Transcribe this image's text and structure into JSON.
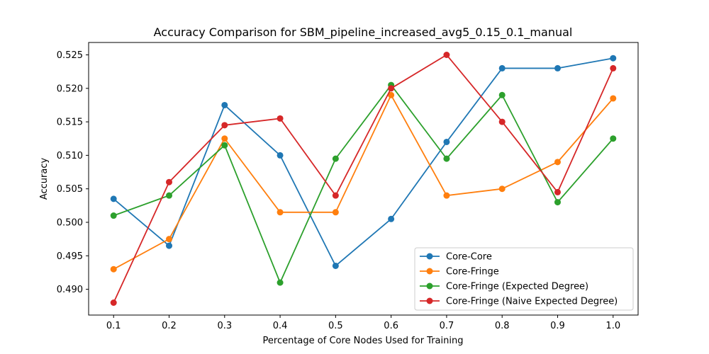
{
  "chart_data": {
    "type": "line",
    "title": "Accuracy Comparison for SBM_pipeline_increased_avg5_0.15_0.1_manual",
    "xlabel": "Percentage of Core Nodes Used for Training",
    "ylabel": "Accuracy",
    "x": [
      0.1,
      0.2,
      0.3,
      0.4,
      0.5,
      0.6,
      0.7,
      0.8,
      0.9,
      1.0
    ],
    "x_tick_labels": [
      "0.1",
      "0.2",
      "0.3",
      "0.4",
      "0.5",
      "0.6",
      "0.7",
      "0.8",
      "0.9",
      "1.0"
    ],
    "y_ticks": [
      0.49,
      0.495,
      0.5,
      0.505,
      0.51,
      0.515,
      0.52,
      0.525
    ],
    "y_tick_labels": [
      "0.490",
      "0.495",
      "0.500",
      "0.505",
      "0.510",
      "0.515",
      "0.520",
      "0.525"
    ],
    "xlim": [
      0.055,
      1.045
    ],
    "ylim": [
      0.48615,
      0.52685
    ],
    "grid": false,
    "legend_position": "lower-right",
    "series": [
      {
        "name": "Core-Core",
        "color": "#1f77b4",
        "values": [
          0.5035,
          0.4965,
          0.5175,
          0.51,
          0.4935,
          0.5005,
          0.512,
          0.523,
          0.523,
          0.5245
        ]
      },
      {
        "name": "Core-Fringe",
        "color": "#ff7f0e",
        "values": [
          0.493,
          0.4975,
          0.5125,
          0.5015,
          0.5015,
          0.519,
          0.504,
          0.505,
          0.509,
          0.5185
        ]
      },
      {
        "name": "Core-Fringe (Expected Degree)",
        "color": "#2ca02c",
        "values": [
          0.501,
          0.504,
          0.5115,
          0.491,
          0.5095,
          0.5205,
          0.5095,
          0.519,
          0.503,
          0.5125
        ]
      },
      {
        "name": "Core-Fringe (Naive Expected Degree)",
        "color": "#d62728",
        "values": [
          0.488,
          0.506,
          0.5145,
          0.5155,
          0.504,
          0.52,
          0.525,
          0.515,
          0.5045,
          0.523
        ]
      }
    ]
  }
}
